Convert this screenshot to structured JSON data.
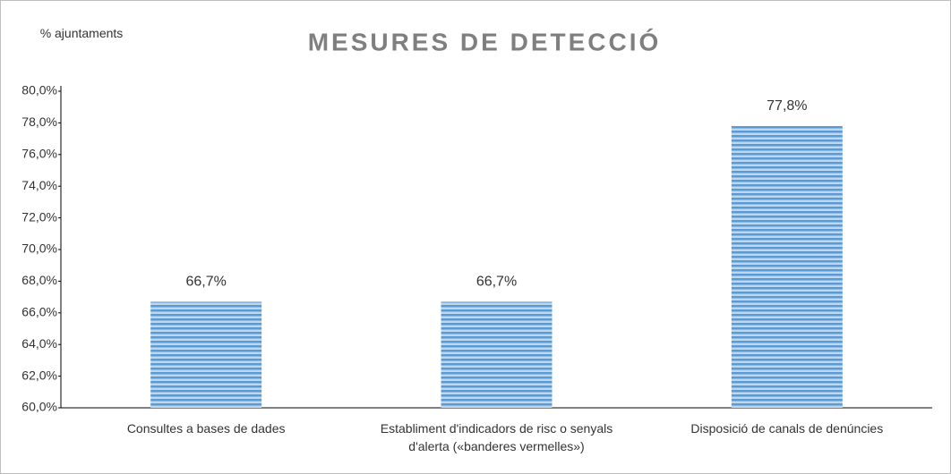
{
  "chart_data": {
    "type": "bar",
    "title": "MESURES DE DETECCIÓ",
    "y_label": "% ajuntaments",
    "categories": [
      "Consultes a bases de dades",
      "Establiment d'indicadors de risc o senyals d'alerta («banderes vermelles»)",
      "Disposició de canals de denúncies"
    ],
    "values": [
      66.7,
      66.7,
      77.8
    ],
    "value_labels": [
      "66,7%",
      "66,7%",
      "77,8%"
    ],
    "color": "#5b9bd5",
    "ylim": [
      60,
      80
    ],
    "yticks": [
      {
        "value": 60,
        "label": "60,0%"
      },
      {
        "value": 62,
        "label": "62,0%"
      },
      {
        "value": 64,
        "label": "64,0%"
      },
      {
        "value": 66,
        "label": "66,0%"
      },
      {
        "value": 68,
        "label": "68,0%"
      },
      {
        "value": 70,
        "label": "70,0%"
      },
      {
        "value": 72,
        "label": "72,0%"
      },
      {
        "value": 74,
        "label": "74,0%"
      },
      {
        "value": 76,
        "label": "76,0%"
      },
      {
        "value": 78,
        "label": "78,0%"
      },
      {
        "value": 80,
        "label": "80,0%"
      }
    ],
    "grid": false
  }
}
